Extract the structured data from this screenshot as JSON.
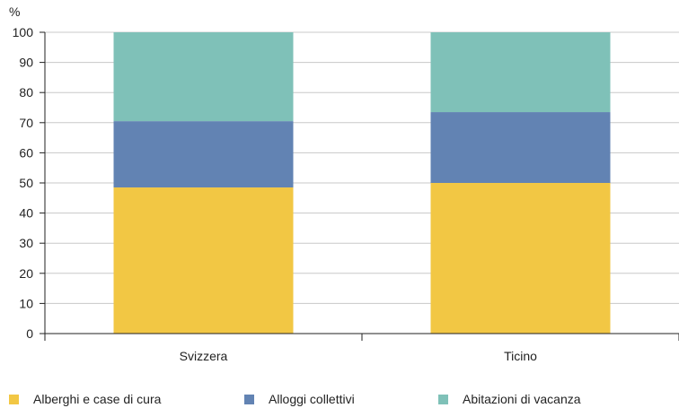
{
  "chart_data": {
    "type": "bar",
    "stacked": true,
    "ylabel": "%",
    "ylim": [
      0,
      100
    ],
    "yticks": [
      0,
      10,
      20,
      30,
      40,
      50,
      60,
      70,
      80,
      90,
      100
    ],
    "grid": true,
    "legend_position": "bottom",
    "categories": [
      "Svizzera",
      "Ticino"
    ],
    "series": [
      {
        "name": "Alberghi e case di cura",
        "color": "#f2c744",
        "values": [
          48.5,
          50.0
        ]
      },
      {
        "name": "Alloggi collettivi",
        "color": "#6283b3",
        "values": [
          22.0,
          23.5
        ]
      },
      {
        "name": "Abitazioni di vacanza",
        "color": "#7fc1b8",
        "values": [
          29.5,
          26.5
        ]
      }
    ]
  }
}
